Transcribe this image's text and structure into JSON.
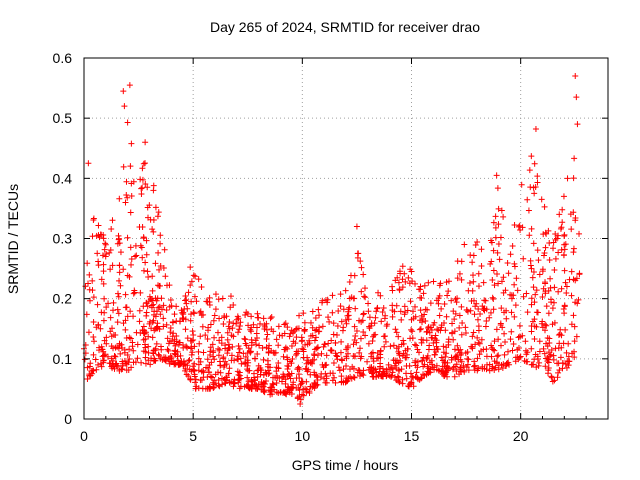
{
  "chart_data": {
    "type": "scatter",
    "title": "Day 265 of 2024, SRMTID for receiver drao",
    "xlabel": "GPS time / hours",
    "ylabel": "SRMTID / TECUs",
    "xlim": [
      0,
      24
    ],
    "ylim": [
      0,
      0.6
    ],
    "xticks": [
      0,
      5,
      10,
      15,
      20
    ],
    "yticks": [
      0,
      0.1,
      0.2,
      0.3,
      0.4,
      0.5,
      0.6
    ],
    "xtick_labels": [
      "0",
      "5",
      "10",
      "15",
      "20"
    ],
    "ytick_labels": [
      "0",
      "0.1",
      "0.2",
      "0.3",
      "0.4",
      "0.5",
      "0.6"
    ],
    "grid": true,
    "marker": "+",
    "color": "#ff0000",
    "series": [
      {
        "name": "SRMTID",
        "sampling_note": "dense cloud of thousands of points; values below follow the envelope of the plotted data",
        "trend_x": [
          0,
          0.5,
          1,
          1.5,
          2,
          2.5,
          3,
          3.5,
          4,
          4.5,
          5,
          5.5,
          6,
          6.5,
          7,
          7.5,
          8,
          8.5,
          9,
          9.5,
          10,
          10.5,
          11,
          11.5,
          12,
          12.5,
          13,
          13.5,
          14,
          14.5,
          15,
          15.5,
          16,
          16.5,
          17,
          17.5,
          18,
          18.5,
          19,
          19.5,
          20,
          20.5,
          21,
          21.5,
          22,
          22.5,
          22.7
        ],
        "trend_low": [
          0.06,
          0.08,
          0.09,
          0.08,
          0.08,
          0.09,
          0.09,
          0.1,
          0.09,
          0.09,
          0.05,
          0.05,
          0.05,
          0.06,
          0.05,
          0.05,
          0.05,
          0.04,
          0.04,
          0.04,
          0.03,
          0.05,
          0.06,
          0.06,
          0.06,
          0.07,
          0.07,
          0.07,
          0.07,
          0.06,
          0.05,
          0.07,
          0.08,
          0.07,
          0.07,
          0.08,
          0.08,
          0.08,
          0.08,
          0.09,
          0.1,
          0.09,
          0.08,
          0.06,
          0.08,
          0.1,
          0.12
        ],
        "trend_high": [
          0.25,
          0.35,
          0.3,
          0.35,
          0.5,
          0.45,
          0.42,
          0.35,
          0.2,
          0.18,
          0.28,
          0.22,
          0.22,
          0.2,
          0.22,
          0.18,
          0.18,
          0.18,
          0.16,
          0.16,
          0.18,
          0.18,
          0.2,
          0.22,
          0.22,
          0.32,
          0.2,
          0.22,
          0.22,
          0.25,
          0.27,
          0.22,
          0.24,
          0.22,
          0.26,
          0.3,
          0.3,
          0.28,
          0.4,
          0.32,
          0.38,
          0.48,
          0.38,
          0.3,
          0.38,
          0.45,
          0.57
        ],
        "highlight_points": [
          {
            "x": 2.1,
            "y": 0.555
          },
          {
            "x": 1.8,
            "y": 0.545
          },
          {
            "x": 1.85,
            "y": 0.52
          },
          {
            "x": 0.2,
            "y": 0.425
          },
          {
            "x": 2.8,
            "y": 0.46
          },
          {
            "x": 12.5,
            "y": 0.32
          },
          {
            "x": 18.9,
            "y": 0.405
          },
          {
            "x": 20.7,
            "y": 0.482
          },
          {
            "x": 22.5,
            "y": 0.57
          },
          {
            "x": 22.55,
            "y": 0.535
          },
          {
            "x": 22.6,
            "y": 0.49
          },
          {
            "x": 9.9,
            "y": 0.025
          }
        ]
      }
    ]
  }
}
